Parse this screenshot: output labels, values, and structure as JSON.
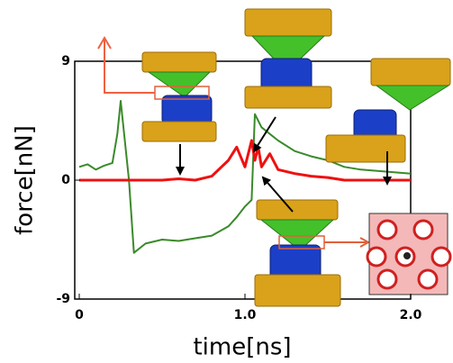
{
  "chart_data": {
    "type": "line",
    "x_label": "time[ns]",
    "y_label": "force[nN]",
    "x": [
      0,
      0.05,
      0.1,
      0.15,
      0.2,
      0.23,
      0.25,
      0.3,
      0.33,
      0.4,
      0.5,
      0.6,
      0.7,
      0.8,
      0.9,
      0.95,
      1.0,
      1.04,
      1.06,
      1.08,
      1.1,
      1.15,
      1.2,
      1.3,
      1.4,
      1.5,
      1.6,
      1.7,
      1.8,
      1.9,
      2.0
    ],
    "series": [
      {
        "color": "#3a8a2a",
        "values": [
          1,
          1.2,
          0.8,
          1.1,
          1.3,
          3.5,
          6,
          0,
          -5.5,
          -4.8,
          -4.5,
          -4.6,
          -4.4,
          -4.2,
          -3.5,
          -2.8,
          -2,
          -1.5,
          5,
          4.5,
          4,
          3.5,
          3,
          2.2,
          1.8,
          1.5,
          1,
          0.8,
          0.7,
          0.6,
          0.5
        ]
      },
      {
        "color": "#ee1111",
        "values": [
          0,
          0,
          0,
          0,
          0,
          0,
          0,
          0,
          0,
          0,
          0,
          0.1,
          0,
          0.3,
          1.5,
          2.5,
          1,
          3,
          1.5,
          2.5,
          1,
          2,
          0.8,
          0.5,
          0.3,
          0.2,
          0,
          0,
          0,
          0,
          0
        ]
      }
    ],
    "xlim": [
      0,
      2
    ],
    "ylim": [
      -9,
      9
    ],
    "xticks": [
      0,
      {
        "value": 1,
        "label": "1.0"
      },
      {
        "value": 2,
        "label": "2.0"
      }
    ],
    "yticks": [
      -9,
      0,
      9
    ]
  }
}
